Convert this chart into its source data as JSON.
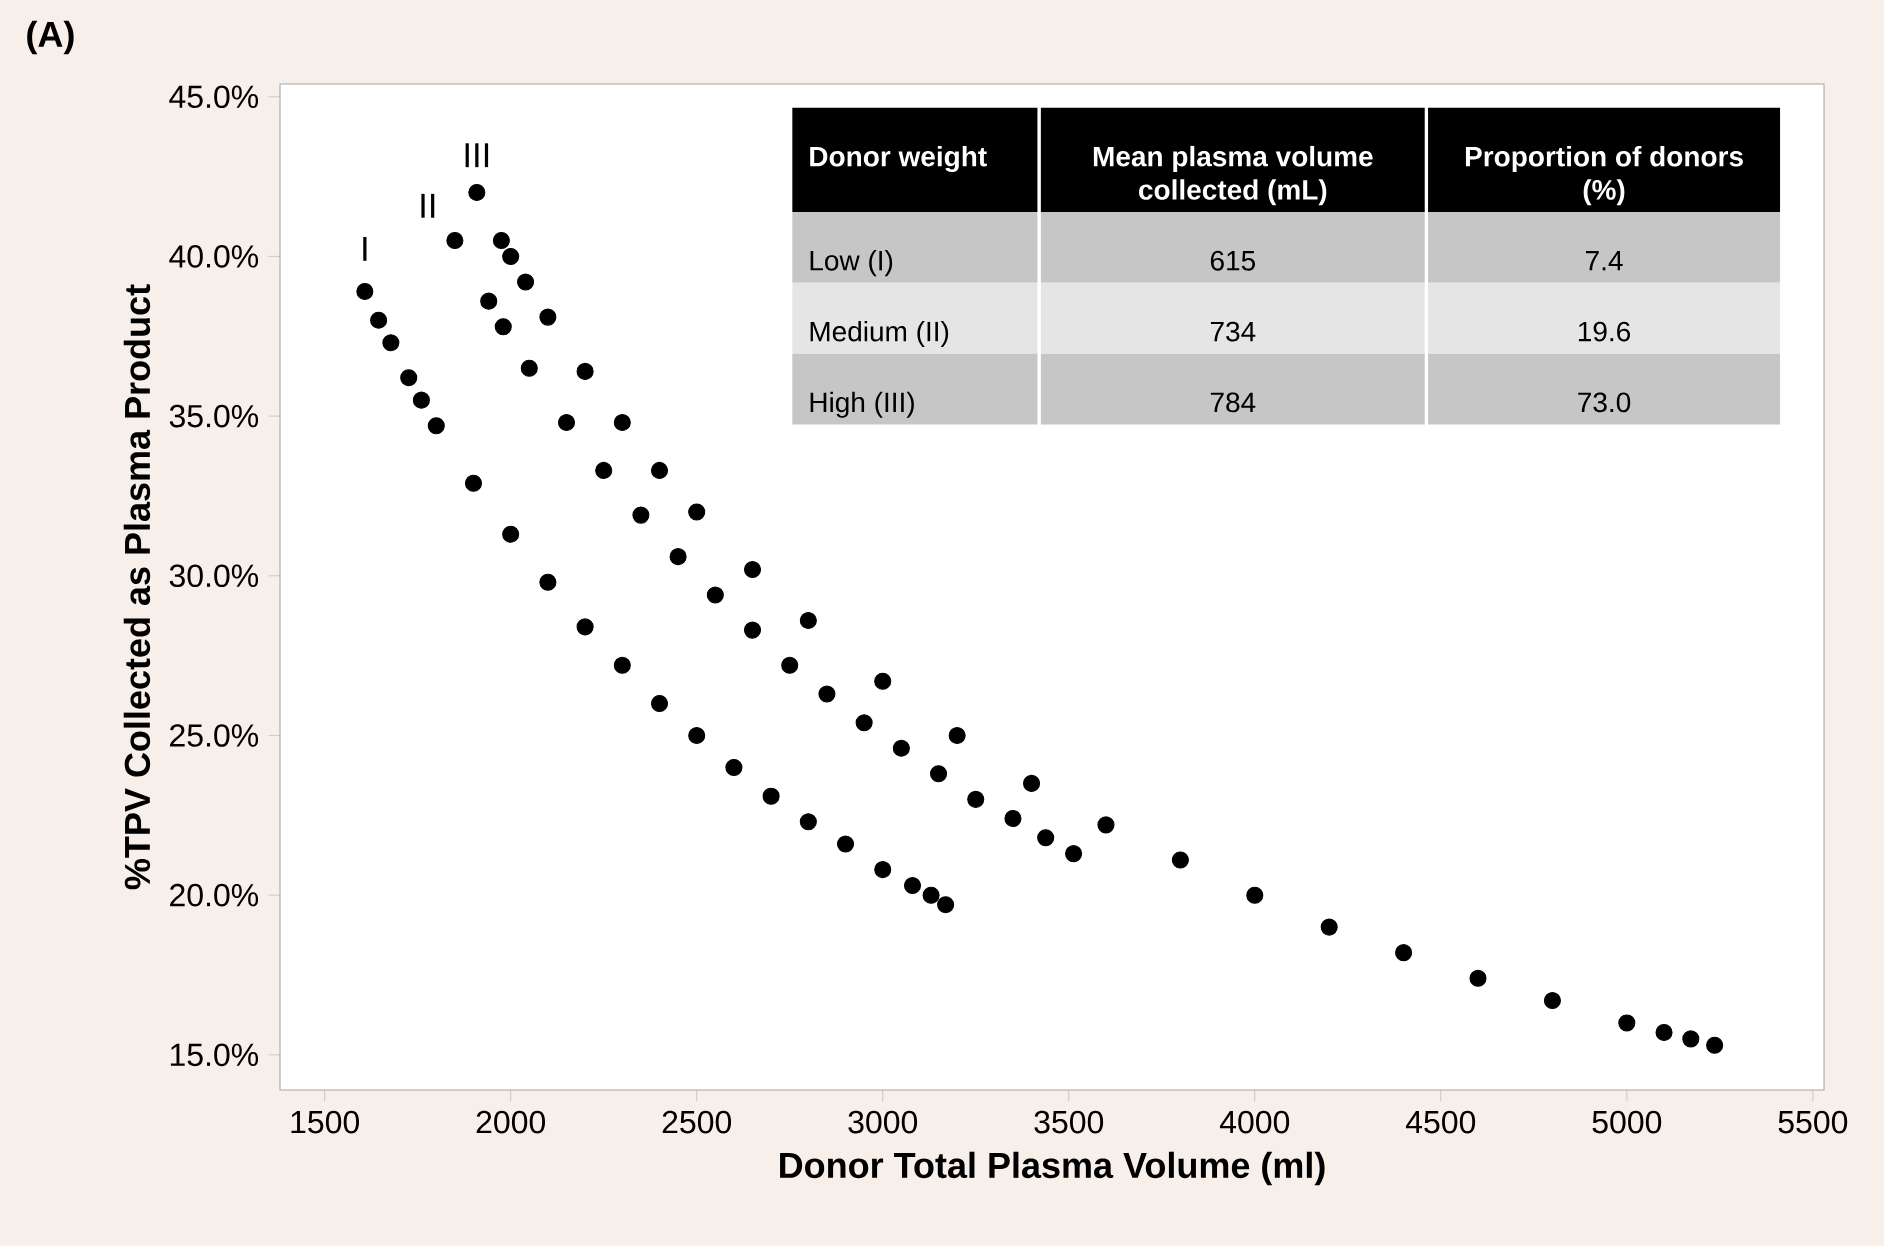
{
  "chart_data": {
    "type": "scatter",
    "xlabel": "Donor Total Plasma Volume (ml)",
    "ylabel": "%TPV Collected as Plasma Product",
    "xlim": [
      1380,
      5530
    ],
    "ylim": [
      13.9,
      45.4
    ],
    "xticks": [
      1500,
      2000,
      2500,
      3000,
      3500,
      4000,
      4500,
      5000,
      5500
    ],
    "yticks": [
      {
        "value": 15,
        "label": "15.0%"
      },
      {
        "value": 20,
        "label": "20.0%"
      },
      {
        "value": 25,
        "label": "25.0%"
      },
      {
        "value": 30,
        "label": "30.0%"
      },
      {
        "value": 35,
        "label": "35.0%"
      },
      {
        "value": 40,
        "label": "40.0%"
      },
      {
        "value": 45,
        "label": "45.0%"
      }
    ],
    "grid": false,
    "series": [
      {
        "color": "#000000",
        "x": [
          1608,
          1645,
          1678,
          1726,
          1760,
          1800,
          1900,
          2000,
          2100,
          2200,
          2300,
          2400,
          2500,
          2600,
          2700,
          2800,
          2900,
          3000,
          3080,
          3130,
          3169
        ],
        "values": [
          38.9,
          38.0,
          37.3,
          36.2,
          35.5,
          34.7,
          32.9,
          31.3,
          29.8,
          28.4,
          27.2,
          26.0,
          25.0,
          24.0,
          23.1,
          22.3,
          21.6,
          20.8,
          20.3,
          20.0,
          19.7
        ]
      },
      {
        "color": "#000000",
        "x": [
          1850,
          1941,
          1980,
          2050,
          2150,
          2250,
          2350,
          2450,
          2550,
          2650,
          2750,
          2850,
          2950,
          3050,
          3150,
          3250,
          3350,
          3438,
          3513
        ],
        "values": [
          40.5,
          38.6,
          37.8,
          36.5,
          34.8,
          33.3,
          31.9,
          30.6,
          29.4,
          28.3,
          27.2,
          26.3,
          25.4,
          24.6,
          23.8,
          23.0,
          22.4,
          21.8,
          21.3
        ]
      },
      {
        "color": "#000000",
        "x": [
          1909,
          1975,
          2000,
          2040,
          2100,
          2200,
          2300,
          2400,
          2500,
          2650,
          2800,
          3000,
          3200,
          3400,
          3600,
          3800,
          4000,
          4200,
          4400,
          4600,
          4800,
          5000,
          5100,
          5172,
          5236
        ],
        "values": [
          42.0,
          40.5,
          40.0,
          39.2,
          38.1,
          36.4,
          34.8,
          33.3,
          32.0,
          30.2,
          28.6,
          26.7,
          25.0,
          23.5,
          22.2,
          21.1,
          20.0,
          19.0,
          18.2,
          17.4,
          16.7,
          16.0,
          15.7,
          15.5,
          15.3
        ]
      }
    ],
    "annotations": [
      "(A)",
      {
        "text": "I",
        "x": 1608,
        "y": 38.9
      },
      {
        "text": "II",
        "x": 1850,
        "y": 40.5
      },
      {
        "text": "III",
        "x": 1909,
        "y": 42.0
      },
      "Donor weight",
      "Mean plasma volume collected (mL)",
      "Proportion of donors (%)",
      "Low (I)",
      "615",
      "7.4",
      "Medium (II)",
      "734",
      "19.6",
      "High (III)",
      "784",
      "73.0"
    ]
  }
}
